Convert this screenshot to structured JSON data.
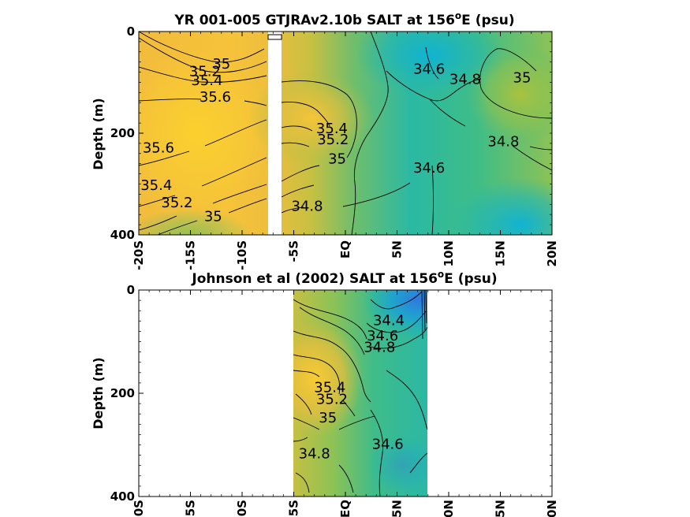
{
  "chart_data": [
    {
      "type": "contour",
      "title": "YR 001-005 GTJRAv2.10b SALT at 156",
      "title_superscript": "o",
      "title_suffix": "E (psu)",
      "ylabel": "Depth (m)",
      "xlim": [
        -20,
        20
      ],
      "ylim": [
        0,
        400
      ],
      "y_reversed": true,
      "x_ticks": [
        "-20S",
        "-15S",
        "-10S",
        "-5S",
        "EQ",
        "5N",
        "10N",
        "15N",
        "20N"
      ],
      "y_ticks": [
        "0",
        "200",
        "400"
      ],
      "missing_band_lat": [
        -8,
        -7
      ],
      "field_samples": [
        {
          "lat": -18,
          "depth": 100,
          "salt": 35.55
        },
        {
          "lat": -13,
          "depth": 180,
          "salt": 35.7
        },
        {
          "lat": -15,
          "depth": 350,
          "salt": 35.1
        },
        {
          "lat": -4,
          "depth": 100,
          "salt": 35.6
        },
        {
          "lat": 0,
          "depth": 40,
          "salt": 34.95
        },
        {
          "lat": 8,
          "depth": 40,
          "salt": 34.45
        },
        {
          "lat": 17,
          "depth": 130,
          "salt": 35.05
        },
        {
          "lat": 8,
          "depth": 250,
          "salt": 34.6
        },
        {
          "lat": 17,
          "depth": 360,
          "salt": 34.5
        },
        {
          "lat": -2,
          "depth": 350,
          "salt": 34.85
        }
      ],
      "contour_labels": [
        {
          "text": "35",
          "lat": -12,
          "depth": 65
        },
        {
          "text": "35.2",
          "lat": -13.6,
          "depth": 80
        },
        {
          "text": "35.4",
          "lat": -13.4,
          "depth": 98
        },
        {
          "text": "35.6",
          "lat": -12.6,
          "depth": 130
        },
        {
          "text": "35.6",
          "lat": -18.1,
          "depth": 230
        },
        {
          "text": "35.4",
          "lat": -18.3,
          "depth": 304
        },
        {
          "text": "35.2",
          "lat": -16.3,
          "depth": 338
        },
        {
          "text": "35",
          "lat": -12.8,
          "depth": 365
        },
        {
          "text": "35.4",
          "lat": -1.3,
          "depth": 192
        },
        {
          "text": "35.2",
          "lat": -1.2,
          "depth": 214
        },
        {
          "text": "35",
          "lat": -0.8,
          "depth": 252
        },
        {
          "text": "34.8",
          "lat": -3.7,
          "depth": 345
        },
        {
          "text": "34.6",
          "lat": 8.1,
          "depth": 75
        },
        {
          "text": "34.8",
          "lat": 11.6,
          "depth": 95
        },
        {
          "text": "35",
          "lat": 17.1,
          "depth": 92
        },
        {
          "text": "34.8",
          "lat": 15.3,
          "depth": 218
        },
        {
          "text": "34.6",
          "lat": 8.1,
          "depth": 270
        }
      ]
    },
    {
      "type": "contour",
      "title": "Johnson et al (2002) SALT at 156",
      "title_superscript": "o",
      "title_suffix": "E (psu)",
      "ylabel": "Depth (m)",
      "xlim": [
        -20,
        20
      ],
      "ylim": [
        0,
        400
      ],
      "y_reversed": true,
      "data_lat_range": [
        -5,
        8
      ],
      "x_ticks": [
        "0S",
        "5S",
        "0S",
        "5S",
        "EQ",
        "5N",
        "0N",
        "5N",
        "0N"
      ],
      "y_ticks": [
        "0",
        "200",
        "400"
      ],
      "field_samples": [
        {
          "lat": -4,
          "depth": 200,
          "salt": 35.6
        },
        {
          "lat": -2,
          "depth": 120,
          "salt": 35.3
        },
        {
          "lat": 4,
          "depth": 30,
          "salt": 34.3
        },
        {
          "lat": 7,
          "depth": 30,
          "salt": 34.1
        },
        {
          "lat": 4,
          "depth": 320,
          "salt": 34.65
        },
        {
          "lat": -3,
          "depth": 350,
          "salt": 34.75
        }
      ],
      "contour_labels": [
        {
          "text": "34.4",
          "lat": 4.2,
          "depth": 60
        },
        {
          "text": "34.6",
          "lat": 3.6,
          "depth": 90
        },
        {
          "text": "34.8",
          "lat": 3.3,
          "depth": 112
        },
        {
          "text": "35.4",
          "lat": -1.5,
          "depth": 190
        },
        {
          "text": "35.2",
          "lat": -1.3,
          "depth": 213
        },
        {
          "text": "35",
          "lat": -1.7,
          "depth": 249
        },
        {
          "text": "34.8",
          "lat": -3.0,
          "depth": 318
        },
        {
          "text": "34.6",
          "lat": 4.1,
          "depth": 300
        }
      ]
    }
  ]
}
